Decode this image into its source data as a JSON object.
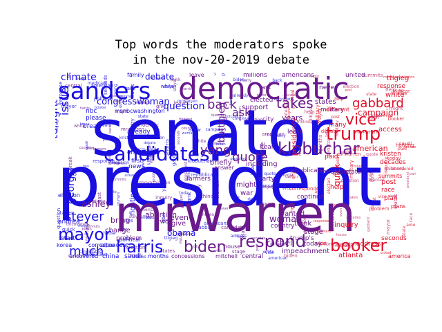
{
  "title_line1": "Top words the moderators spoke",
  "title_line2": "in the nov-20-2019 debate",
  "colors": {
    "blue": "#1a0fe0",
    "purple": "#6a1a8c",
    "red": "#e0102a",
    "pink": "#c0306a"
  },
  "words": [
    {
      "text": "president",
      "color": "blue"
    },
    {
      "text": "senator",
      "color": "blue"
    },
    {
      "text": "mrwarren",
      "color": "purple"
    },
    {
      "text": "democratic",
      "color": "purple"
    },
    {
      "text": "sanders",
      "color": "blue"
    },
    {
      "text": "candidates",
      "color": "blue"
    },
    {
      "text": "klobuchar",
      "color": "purple"
    },
    {
      "text": "trump",
      "color": "red"
    },
    {
      "text": "respond",
      "color": "purple"
    },
    {
      "text": "booker",
      "color": "red"
    },
    {
      "text": "harris",
      "color": "blue"
    },
    {
      "text": "biden",
      "color": "purple"
    },
    {
      "text": "mayor",
      "color": "blue"
    },
    {
      "text": "steyer",
      "color": "blue"
    },
    {
      "text": "vice",
      "color": "red"
    },
    {
      "text": "gabbard",
      "color": "red"
    },
    {
      "text": "takes",
      "color": "purple"
    },
    {
      "text": "yang",
      "color": "purple"
    },
    {
      "text": "quote",
      "color": "purple"
    },
    {
      "text": "back",
      "color": "purple"
    },
    {
      "text": "question",
      "color": "blue"
    },
    {
      "text": "congresswoman",
      "color": "blue"
    },
    {
      "text": "climate",
      "color": "blue"
    },
    {
      "text": "tonight",
      "color": "blue"
    },
    {
      "text": "issue",
      "color": "blue"
    },
    {
      "text": "much",
      "color": "blue"
    },
    {
      "text": "ashley",
      "color": "purple"
    },
    {
      "text": "buttigieg",
      "color": "purple"
    },
    {
      "text": "debate",
      "color": "blue"
    },
    {
      "text": "ask",
      "color": "purple"
    },
    {
      "text": "campaign",
      "color": "red"
    },
    {
      "text": "american",
      "color": "red"
    },
    {
      "text": "quick",
      "color": "red"
    },
    {
      "text": "woman",
      "color": "purple"
    },
    {
      "text": "obama",
      "color": "blue"
    },
    {
      "text": "georgia",
      "color": "blue"
    },
    {
      "text": "impeachment",
      "color": "purple"
    },
    {
      "text": "rachel",
      "color": "purple"
    },
    {
      "text": "mitchell",
      "color": "purple"
    },
    {
      "text": "concessions",
      "color": "purple"
    },
    {
      "text": "central",
      "color": "purple"
    },
    {
      "text": "atlanta",
      "color": "red"
    },
    {
      "text": "america",
      "color": "red"
    },
    {
      "text": "china",
      "color": "blue"
    },
    {
      "text": "saudi",
      "color": "blue"
    },
    {
      "text": "months",
      "color": "blue"
    },
    {
      "text": "abortion",
      "color": "purple"
    },
    {
      "text": "change",
      "color": "purple"
    },
    {
      "text": "problem",
      "color": "purple"
    },
    {
      "text": "bring",
      "color": "purple"
    },
    {
      "text": "support",
      "color": "purple"
    },
    {
      "text": "years",
      "color": "purple"
    },
    {
      "text": "briefly",
      "color": "purple"
    },
    {
      "text": "including",
      "color": "purple"
    },
    {
      "text": "republicans",
      "color": "purple"
    },
    {
      "text": "medicare",
      "color": "purple"
    },
    {
      "text": "state",
      "color": "purple"
    },
    {
      "text": "states",
      "color": "purple"
    },
    {
      "text": "military",
      "color": "purple"
    },
    {
      "text": "response",
      "color": "red"
    },
    {
      "text": "white",
      "color": "red"
    },
    {
      "text": "millions",
      "color": "purple"
    },
    {
      "text": "americans",
      "color": "purple"
    },
    {
      "text": "united",
      "color": "purple"
    },
    {
      "text": "never",
      "color": "purple"
    },
    {
      "text": "elected",
      "color": "purple"
    },
    {
      "text": "last",
      "color": "purple"
    },
    {
      "text": "leave",
      "color": "purple"
    },
    {
      "text": "family",
      "color": "blue"
    },
    {
      "text": "nbc",
      "color": "blue"
    },
    {
      "text": "msnbcwashington",
      "color": "blue"
    },
    {
      "text": "please",
      "color": "blue"
    },
    {
      "text": "break",
      "color": "blue"
    },
    {
      "text": "already",
      "color": "blue"
    },
    {
      "text": "andrea",
      "color": "blue"
    },
    {
      "text": "korea",
      "color": "blue"
    },
    {
      "text": "start",
      "color": "blue"
    },
    {
      "text": "allow",
      "color": "blue"
    },
    {
      "text": "political",
      "color": "blue"
    },
    {
      "text": "news",
      "color": "blue"
    },
    {
      "text": "two",
      "color": "purple"
    },
    {
      "text": "even",
      "color": "purple"
    },
    {
      "text": "give",
      "color": "purple"
    },
    {
      "text": "might",
      "color": "purple"
    },
    {
      "text": "war",
      "color": "purple"
    },
    {
      "text": "house",
      "color": "purple"
    },
    {
      "text": "answer",
      "color": "purple"
    },
    {
      "text": "party",
      "color": "purple"
    },
    {
      "text": "wanted",
      "color": "purple"
    },
    {
      "text": "think",
      "color": "purple"
    },
    {
      "text": "stage",
      "color": "purple"
    },
    {
      "text": "trump's",
      "color": "purple"
    },
    {
      "text": "today",
      "color": "purple"
    },
    {
      "text": "country",
      "color": "purple"
    },
    {
      "text": "continue",
      "color": "purple"
    },
    {
      "text": "help",
      "color": "red"
    },
    {
      "text": "inquiry",
      "color": "red"
    },
    {
      "text": "address",
      "color": "red"
    },
    {
      "text": "seconds",
      "color": "red"
    },
    {
      "text": "post",
      "color": "red"
    },
    {
      "text": "race",
      "color": "red"
    },
    {
      "text": "plan",
      "color": "red"
    },
    {
      "text": "kristen",
      "color": "red"
    },
    {
      "text": "paid",
      "color": "red"
    },
    {
      "text": "access",
      "color": "red"
    },
    {
      "text": "end",
      "color": "blue"
    },
    {
      "text": "first",
      "color": "blue"
    },
    {
      "text": "office",
      "color": "purple"
    },
    {
      "text": "presidency",
      "color": "red"
    },
    {
      "text": "fighting",
      "color": "blue"
    },
    {
      "text": "farmers",
      "color": "purple"
    },
    {
      "text": "election",
      "color": "blue"
    },
    {
      "text": "least",
      "color": "purple"
    },
    {
      "text": "hear",
      "color": "purple"
    },
    {
      "text": "city",
      "color": "purple"
    },
    {
      "text": "decades",
      "color": "red"
    },
    {
      "text": "ttigieg",
      "color": "red"
    },
    {
      "text": "different",
      "color": "red"
    },
    {
      "text": "many",
      "color": "red"
    },
    {
      "text": "summits",
      "color": "red"
    },
    {
      "text": "plans",
      "color": "red"
    },
    {
      "text": "correspondent",
      "color": "blue"
    },
    {
      "text": "uncovered",
      "color": "blue"
    }
  ]
}
